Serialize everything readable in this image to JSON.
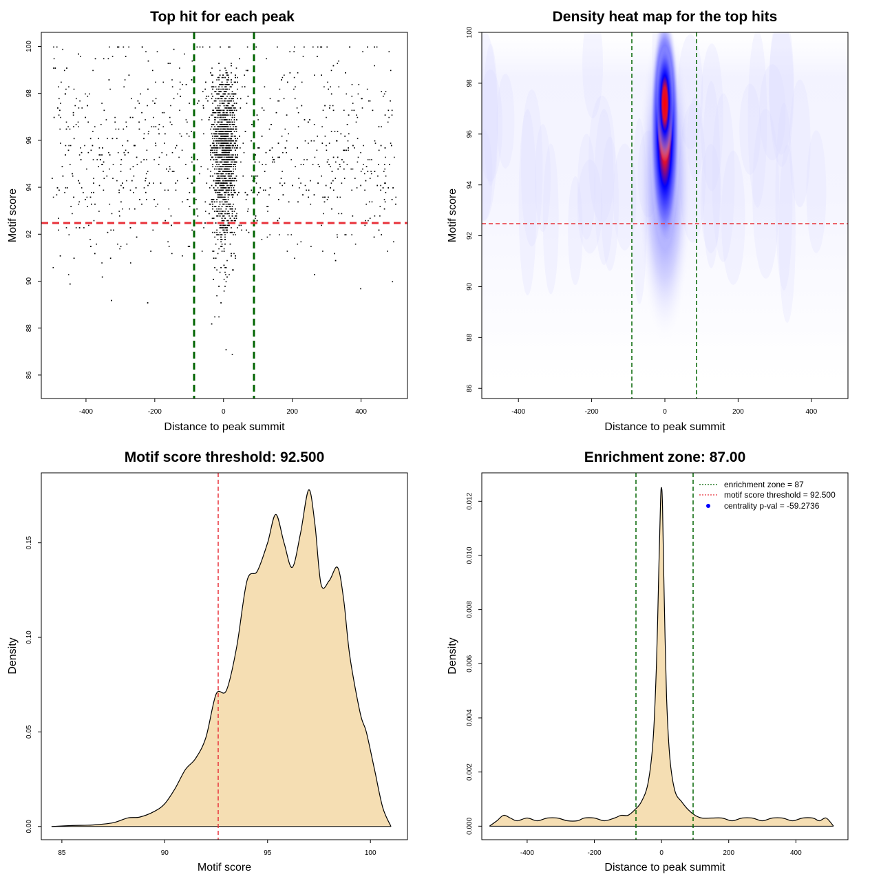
{
  "colors": {
    "threshold_line": "#e8313a",
    "zone_line": "#006400",
    "density_fill": "#f5deb3",
    "points": "#000000",
    "heat_low": "#ffffff",
    "heat_mid": "#0000ff",
    "heat_high": "#ff0000",
    "centrality_marker": "#0000ff"
  },
  "chart_data": [
    {
      "type": "scatter",
      "title": "Top hit for each peak",
      "xlabel": "Distance to peak summit",
      "ylabel": "Motif score",
      "xlim": [
        -530,
        535
      ],
      "ylim": [
        85.0,
        100.6
      ],
      "xticks": [
        -400,
        -200,
        0,
        200,
        400
      ],
      "yticks": [
        86,
        88,
        90,
        92,
        94,
        96,
        98,
        100
      ],
      "xtick_labels": [
        "-400",
        "-200",
        "0",
        "200",
        "400"
      ],
      "ytick_labels": [
        "86",
        "88",
        "90",
        "92",
        "94",
        "96",
        "98",
        "100"
      ],
      "hlines": [
        92.5
      ],
      "vlines": [
        -87,
        87
      ],
      "points_description_values": {
        "x_range": [
          -500,
          500
        ],
        "y_range": [
          85.6,
          100
        ],
        "central_band_x": [
          -40,
          40
        ],
        "approx_count": 3000
      },
      "grid": false
    },
    {
      "type": "heatmap",
      "title": "Density heat map for the top hits",
      "xlabel": "Distance to peak summit",
      "ylabel": "Motif score",
      "xlim": [
        -500,
        500
      ],
      "ylim": [
        85.6,
        100
      ],
      "xticks": [
        -400,
        -200,
        0,
        200,
        400
      ],
      "yticks": [
        86,
        88,
        90,
        92,
        94,
        96,
        98,
        100
      ],
      "xtick_labels": [
        "-400",
        "-200",
        "0",
        "200",
        "400"
      ],
      "ytick_labels": [
        "86",
        "88",
        "90",
        "92",
        "94",
        "96",
        "98",
        "100"
      ],
      "hlines": [
        92.5
      ],
      "vlines": [
        -87,
        87
      ],
      "hotspot": {
        "x": 0,
        "y": 97.2
      },
      "grid": false
    },
    {
      "type": "area",
      "title": "Motif score threshold: 92.500",
      "xlabel": "Motif score",
      "ylabel": "Density",
      "xlim": [
        84,
        101.8
      ],
      "ylim": [
        -0.007,
        0.187
      ],
      "xticks": [
        85,
        90,
        95,
        100
      ],
      "yticks": [
        0.0,
        0.05,
        0.1,
        0.15
      ],
      "xtick_labels": [
        "85",
        "90",
        "95",
        "100"
      ],
      "ytick_labels": [
        "0.00",
        "0.05",
        "0.10",
        "0.15"
      ],
      "vlines": [
        92.5
      ],
      "x": [
        84.5,
        85.5,
        86.5,
        87.5,
        88.2,
        88.8,
        89.5,
        90.0,
        90.5,
        91.0,
        91.5,
        92.0,
        92.5,
        93.0,
        93.5,
        94.0,
        94.5,
        95.0,
        95.4,
        95.8,
        96.2,
        96.6,
        97.0,
        97.3,
        97.6,
        98.0,
        98.4,
        98.7,
        99.0,
        99.5,
        99.8,
        100.2,
        100.6,
        101.0
      ],
      "y": [
        0.0,
        0.0005,
        0.0008,
        0.002,
        0.0045,
        0.005,
        0.008,
        0.012,
        0.02,
        0.03,
        0.036,
        0.047,
        0.07,
        0.072,
        0.095,
        0.13,
        0.135,
        0.15,
        0.165,
        0.15,
        0.137,
        0.155,
        0.178,
        0.16,
        0.128,
        0.13,
        0.137,
        0.12,
        0.09,
        0.06,
        0.05,
        0.03,
        0.01,
        0.0
      ],
      "grid": false
    },
    {
      "type": "area",
      "title": "Enrichment zone: 87.00",
      "xlabel": "Distance to peak summit",
      "ylabel": "Density",
      "xlim": [
        -535,
        555
      ],
      "ylim": [
        -0.0005,
        0.01305
      ],
      "xticks": [
        -400,
        -200,
        0,
        200,
        400
      ],
      "yticks": [
        0.0,
        0.002,
        0.004,
        0.006,
        0.008,
        0.01,
        0.012
      ],
      "xtick_labels": [
        "-400",
        "-200",
        "0",
        "200",
        "400"
      ],
      "ytick_labels": [
        "0.000",
        "0.002",
        "0.004",
        "0.006",
        "0.008",
        "0.010",
        "0.012"
      ],
      "vlines": [
        -87,
        87
      ],
      "x": [
        -512,
        -490,
        -470,
        -450,
        -430,
        -400,
        -370,
        -340,
        -310,
        -280,
        -250,
        -230,
        -200,
        -170,
        -140,
        -120,
        -100,
        -80,
        -60,
        -40,
        -25,
        -15,
        -8,
        -3,
        0,
        3,
        8,
        15,
        25,
        40,
        60,
        80,
        100,
        120,
        150,
        180,
        210,
        240,
        270,
        300,
        330,
        360,
        390,
        420,
        450,
        470,
        490,
        512
      ],
      "y": [
        0.0,
        0.0002,
        0.0004,
        0.0003,
        0.0002,
        0.0003,
        0.0002,
        0.0003,
        0.0003,
        0.0002,
        0.0002,
        0.0003,
        0.0003,
        0.0002,
        0.0003,
        0.0004,
        0.0004,
        0.0006,
        0.0009,
        0.0016,
        0.0032,
        0.006,
        0.0095,
        0.012,
        0.0125,
        0.0118,
        0.0085,
        0.0048,
        0.0025,
        0.0013,
        0.0009,
        0.0006,
        0.0004,
        0.0003,
        0.0003,
        0.0003,
        0.0002,
        0.0003,
        0.0003,
        0.0002,
        0.0003,
        0.0003,
        0.0002,
        0.0003,
        0.0003,
        0.0002,
        0.0003,
        0.0
      ],
      "legend": {
        "position": "top-right",
        "entries": [
          "enrichment zone = 87",
          "motif score threshold = 92.500",
          "centrality p-val = -59.2736"
        ]
      },
      "grid": false
    }
  ]
}
